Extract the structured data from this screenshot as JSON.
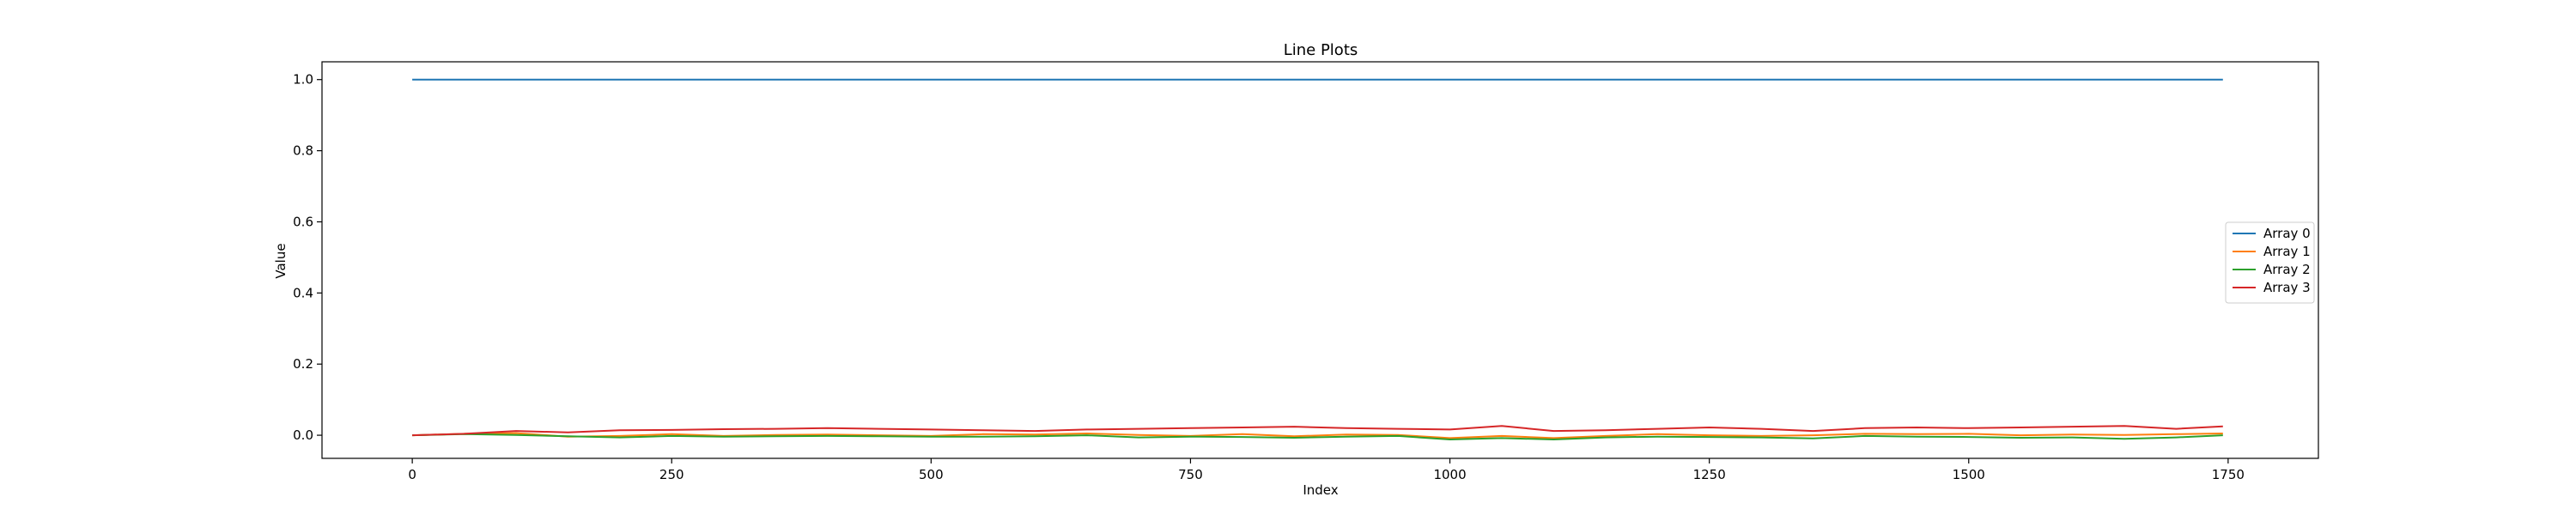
{
  "chart_data": {
    "type": "line",
    "title": "Line Plots",
    "xlabel": "Index",
    "ylabel": "Value",
    "xlim": [
      -87,
      1837
    ],
    "ylim": [
      -0.065,
      1.05
    ],
    "x_ticks": [
      0,
      250,
      500,
      750,
      1000,
      1250,
      1500,
      1750
    ],
    "x_tick_labels": [
      "0",
      "250",
      "500",
      "750",
      "1000",
      "1250",
      "1500",
      "1750"
    ],
    "y_ticks": [
      0.0,
      0.2,
      0.4,
      0.6,
      0.8,
      1.0
    ],
    "y_tick_labels": [
      "0.0",
      "0.2",
      "0.4",
      "0.6",
      "0.8",
      "1.0"
    ],
    "grid": false,
    "legend_position": "center-right",
    "series": [
      {
        "name": "Array 0",
        "color": "#1f77b4",
        "x": [
          0,
          1745
        ],
        "y": [
          1.0,
          1.0
        ]
      },
      {
        "name": "Array 1",
        "color": "#ff7f0e",
        "x": [
          0,
          50,
          100,
          150,
          200,
          250,
          300,
          350,
          400,
          450,
          500,
          550,
          600,
          650,
          700,
          750,
          800,
          850,
          900,
          950,
          1000,
          1050,
          1100,
          1150,
          1200,
          1250,
          1300,
          1350,
          1400,
          1450,
          1500,
          1550,
          1600,
          1650,
          1700,
          1745
        ],
        "y": [
          0.0,
          0.004,
          0.006,
          -0.004,
          -0.002,
          0.003,
          -0.002,
          0.001,
          0.002,
          0.0,
          -0.002,
          0.003,
          0.002,
          0.005,
          0.001,
          -0.002,
          0.003,
          -0.003,
          0.002,
          0.001,
          -0.008,
          -0.002,
          -0.008,
          -0.002,
          0.003,
          0.0,
          -0.002,
          0.0,
          0.004,
          0.003,
          0.004,
          0.0,
          0.002,
          0.001,
          0.003,
          0.005
        ]
      },
      {
        "name": "Array 2",
        "color": "#2ca02c",
        "x": [
          0,
          50,
          100,
          150,
          200,
          250,
          300,
          350,
          400,
          450,
          500,
          550,
          600,
          650,
          700,
          750,
          800,
          850,
          900,
          950,
          1000,
          1050,
          1100,
          1150,
          1200,
          1250,
          1300,
          1350,
          1400,
          1450,
          1500,
          1550,
          1600,
          1650,
          1700,
          1745
        ],
        "y": [
          0.0,
          0.003,
          0.001,
          -0.003,
          -0.006,
          -0.002,
          -0.004,
          -0.003,
          -0.002,
          -0.003,
          -0.004,
          -0.004,
          -0.003,
          0.0,
          -0.006,
          -0.004,
          -0.005,
          -0.007,
          -0.004,
          -0.002,
          -0.012,
          -0.008,
          -0.012,
          -0.006,
          -0.004,
          -0.005,
          -0.006,
          -0.009,
          -0.002,
          -0.004,
          -0.005,
          -0.007,
          -0.006,
          -0.01,
          -0.006,
          0.0
        ]
      },
      {
        "name": "Array 3",
        "color": "#d62728",
        "x": [
          0,
          50,
          100,
          150,
          200,
          250,
          300,
          350,
          400,
          450,
          500,
          550,
          600,
          650,
          700,
          750,
          800,
          850,
          900,
          950,
          1000,
          1050,
          1100,
          1150,
          1200,
          1250,
          1300,
          1350,
          1400,
          1450,
          1500,
          1550,
          1600,
          1650,
          1700,
          1745
        ],
        "y": [
          0.0,
          0.004,
          0.012,
          0.008,
          0.014,
          0.015,
          0.017,
          0.018,
          0.02,
          0.018,
          0.016,
          0.014,
          0.012,
          0.016,
          0.018,
          0.02,
          0.022,
          0.024,
          0.02,
          0.018,
          0.016,
          0.026,
          0.012,
          0.014,
          0.018,
          0.022,
          0.018,
          0.012,
          0.02,
          0.022,
          0.02,
          0.022,
          0.024,
          0.026,
          0.018,
          0.025
        ]
      }
    ]
  }
}
